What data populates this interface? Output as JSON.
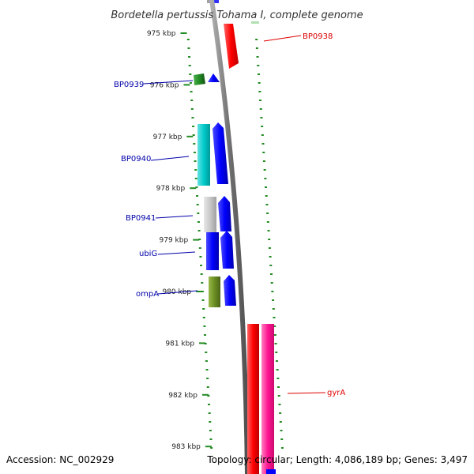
{
  "title": "Bordetella pertussis Tohama I, complete genome",
  "footer": {
    "accession": "Accession: NC_002929",
    "topology": "Topology: circular; Length: 4,086,189 bp; Genes: 3,497"
  },
  "colors": {
    "backbone": "#808080",
    "gc_marks": "#228b22",
    "label_blue": "#0000aa",
    "label_red": "#dd0000"
  },
  "ticks": [
    {
      "kbp": 975,
      "label": "975 kbp"
    },
    {
      "kbp": 976,
      "label": "976 kbp"
    },
    {
      "kbp": 977,
      "label": "977 kbp"
    },
    {
      "kbp": 978,
      "label": "978 kbp"
    },
    {
      "kbp": 979,
      "label": "979 kbp"
    },
    {
      "kbp": 980,
      "label": "980 kbp"
    },
    {
      "kbp": 981,
      "label": "981 kbp"
    },
    {
      "kbp": 982,
      "label": "982 kbp"
    },
    {
      "kbp": 983,
      "label": "983 kbp"
    }
  ],
  "labels": {
    "bp0938": "BP0938",
    "bp0939": "BP0939",
    "bp0940": "BP0940",
    "bp0941": "BP0941",
    "ubig": "ubiG",
    "ompa": "ompA",
    "gyra": "gyrA"
  }
}
